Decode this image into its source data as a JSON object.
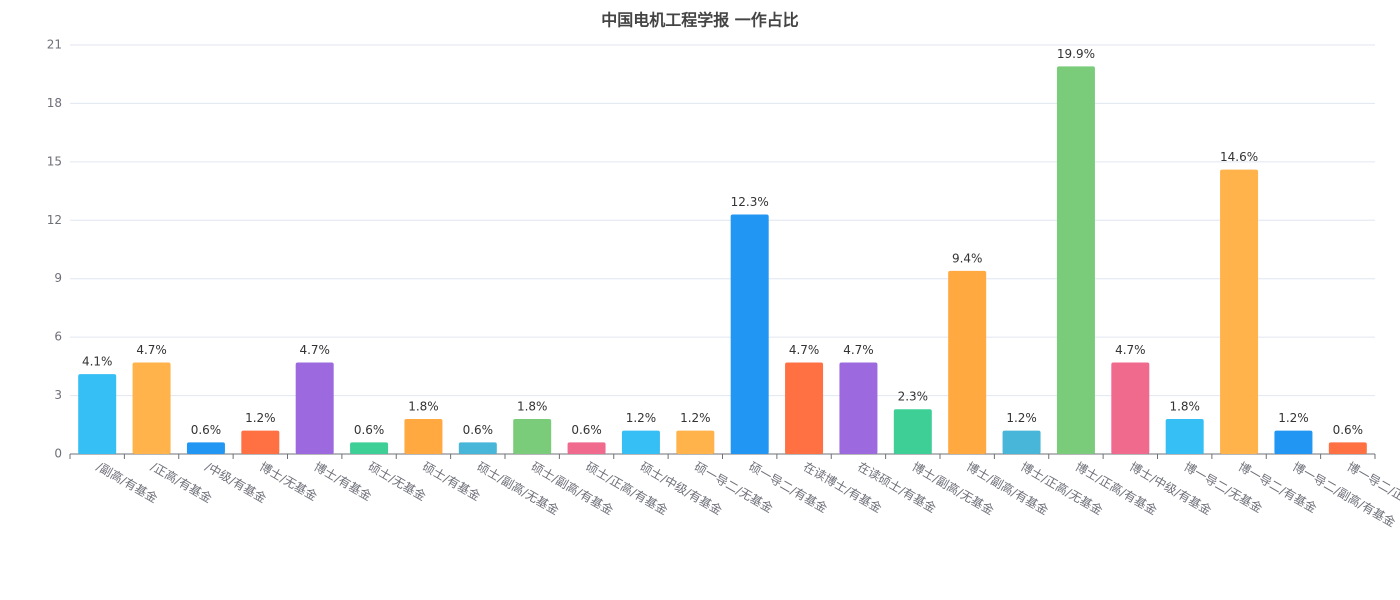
{
  "chart_data": {
    "type": "bar",
    "title": "中国电机工程学报 一作占比",
    "categories": [
      "/副高/有基金",
      "/正高/有基金",
      "/中级/有基金",
      "博士/无基金",
      "博士/有基金",
      "硕士/无基金",
      "硕士/有基金",
      "硕士/副高/无基金",
      "硕士/副高/有基金",
      "硕士/正高/有基金",
      "硕士/中级/有基金",
      "硕一导二/无基金",
      "硕一导二/有基金",
      "在读博士/有基金",
      "在读硕士/有基金",
      "博士/副高/无基金",
      "博士/副高/有基金",
      "博士/正高/无基金",
      "博士/正高/有基金",
      "博士/中级/有基金",
      "博一导二/无基金",
      "博一导二/有基金",
      "博一导二/副高/有基金",
      "博一导二/正高/有基金"
    ],
    "values": [
      4.1,
      4.7,
      0.6,
      1.2,
      4.7,
      0.6,
      1.8,
      0.6,
      1.8,
      0.6,
      1.2,
      1.2,
      12.3,
      4.7,
      4.7,
      2.3,
      9.4,
      1.2,
      19.9,
      4.7,
      1.8,
      14.6,
      1.2,
      0.6
    ],
    "value_labels": [
      "4.1%",
      "4.7%",
      "0.6%",
      "1.2%",
      "4.7%",
      "0.6%",
      "1.8%",
      "0.6%",
      "1.8%",
      "0.6%",
      "1.2%",
      "1.2%",
      "12.3%",
      "4.7%",
      "4.7%",
      "2.3%",
      "9.4%",
      "1.2%",
      "19.9%",
      "4.7%",
      "1.8%",
      "14.6%",
      "1.2%",
      "0.6%"
    ],
    "colors": [
      "#36bff4",
      "#ffb34a",
      "#2196f3",
      "#ff7043",
      "#9c6ade",
      "#3ecf97",
      "#ffa940",
      "#48b6d9",
      "#7bcc7a",
      "#f06a8e"
    ],
    "ylim": [
      0,
      21
    ],
    "yticks": [
      0,
      3,
      6,
      9,
      12,
      15,
      18,
      21
    ],
    "grid": true
  }
}
